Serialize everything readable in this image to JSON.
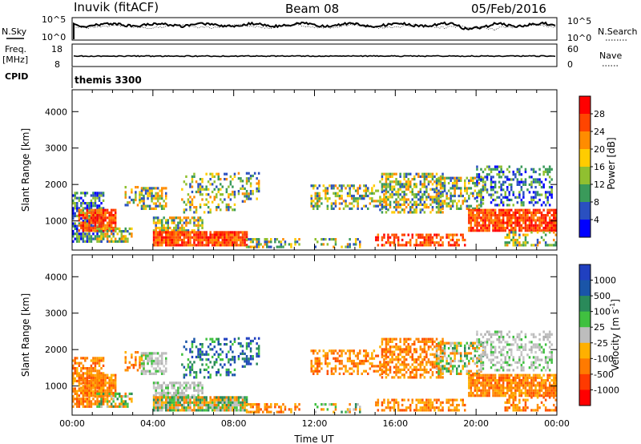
{
  "header": {
    "station": "Inuvik (fitACF)",
    "beam": "Beam 08",
    "date": "05/Feb/2016"
  },
  "panels": {
    "nsky_label": "N.Sky",
    "nsky_ticks": [
      "10^5",
      "10^0"
    ],
    "nsearch_label": "N.Search",
    "nsearch_ticks": [
      "10^5",
      "10^0"
    ],
    "freq_label": "Freq.",
    "freq_unit": "[MHz]",
    "freq_ticks": [
      "18",
      "8"
    ],
    "nave_label": "Nave",
    "nave_ticks": [
      "60",
      "0"
    ],
    "cpid_label": "CPID",
    "cpid_value": "themis 3300"
  },
  "chart_data": [
    {
      "type": "heatmap",
      "name": "power",
      "ylabel": "Slant Range [km]",
      "ylim": [
        200,
        4600
      ],
      "y_ticks": [
        "4000",
        "3000",
        "2000",
        "1000"
      ],
      "x_ticks": [
        "00:00",
        "04:00",
        "08:00",
        "12:00",
        "16:00",
        "20:00",
        "00:00"
      ],
      "colorbar_label": "Power [dB]",
      "colorbar_ticks": [
        "28",
        "24",
        "20",
        "16",
        "12",
        "8",
        "4"
      ],
      "colorbar_colors": [
        "#ff0000",
        "#ff4500",
        "#ff8c00",
        "#ffcc00",
        "#90c030",
        "#3a9a5a",
        "#2a50c0",
        "#0000ff"
      ]
    },
    {
      "type": "heatmap",
      "name": "velocity",
      "ylabel": "Slant Range [km]",
      "ylim": [
        200,
        4600
      ],
      "y_ticks": [
        "4000",
        "3000",
        "2000",
        "1000"
      ],
      "x_ticks": [
        "00:00",
        "04:00",
        "08:00",
        "12:00",
        "16:00",
        "20:00",
        "00:00"
      ],
      "xlabel": "Time UT",
      "colorbar_label": "Velocity [m s",
      "colorbar_unit_exp": "-1",
      "colorbar_unit_end": "]",
      "colorbar_ticks": [
        "1000",
        "500",
        "100",
        "25",
        "-25",
        "-100",
        "-500",
        "-1000"
      ],
      "colorbar_colors": [
        "#2040c0",
        "#1a55a8",
        "#2a8a5a",
        "#40c040",
        "#bdbdbd",
        "#ffb000",
        "#ff7a00",
        "#ff3a00",
        "#ff0000"
      ]
    }
  ]
}
